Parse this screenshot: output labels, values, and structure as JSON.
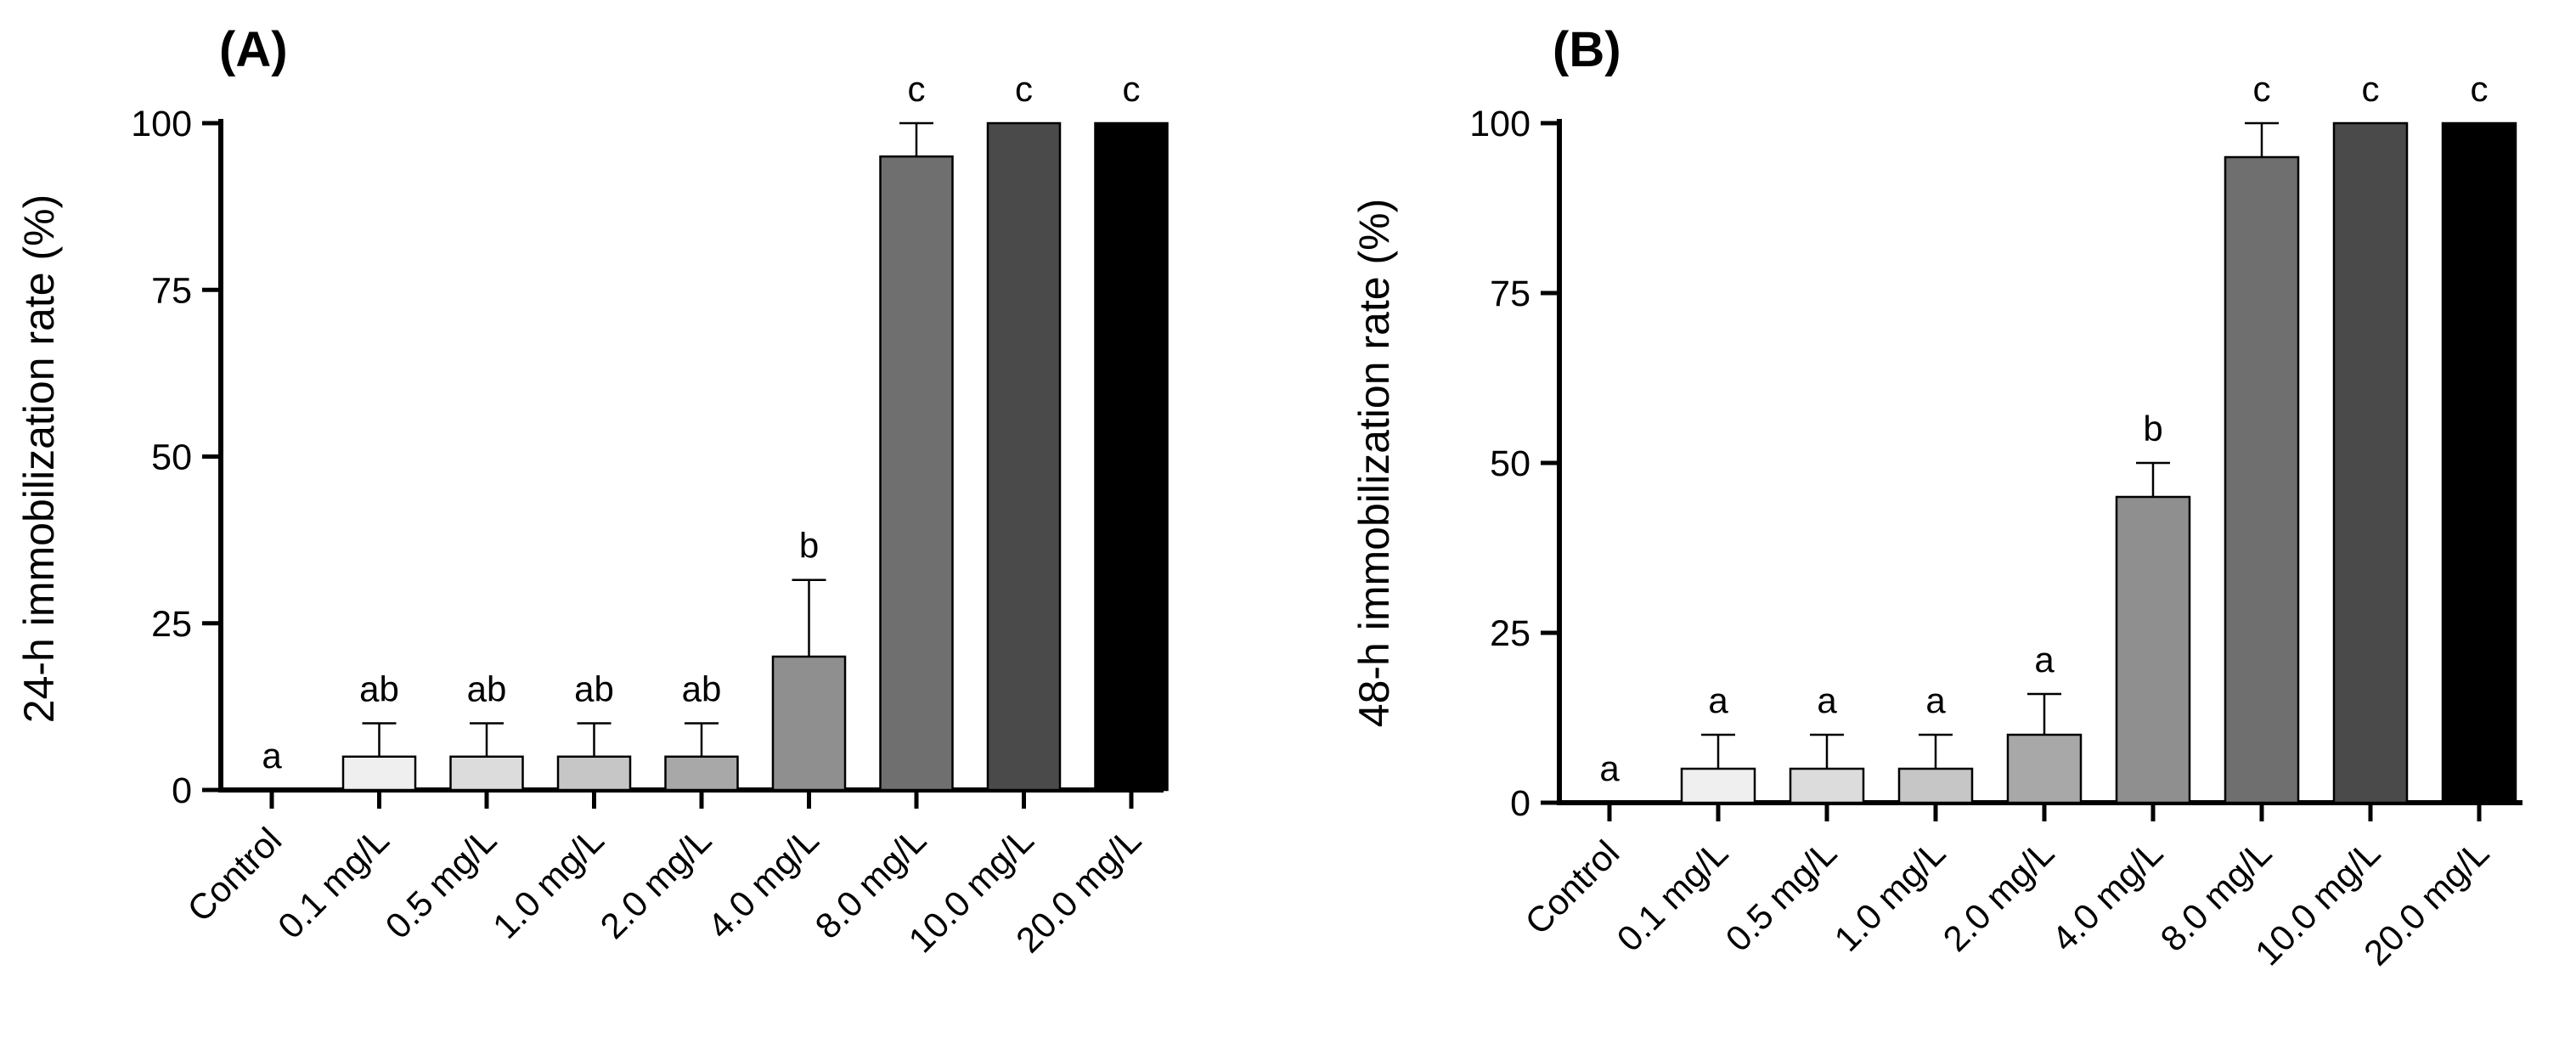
{
  "chart_data": [
    {
      "type": "bar",
      "panel_label": "(A)",
      "title": "",
      "xlabel": "",
      "ylabel": "24-h immobilization rate (%)",
      "ylim": [
        0,
        100
      ],
      "yticks": [
        "0",
        "25",
        "50",
        "75",
        "100"
      ],
      "categories": [
        "Control",
        "0.1 mg/L",
        "0.5 mg/L",
        "1.0 mg/L",
        "2.0 mg/L",
        "4.0 mg/L",
        "8.0 mg/L",
        "10.0 mg/L",
        "20.0 mg/L"
      ],
      "values": [
        0,
        5,
        5,
        5,
        5,
        20,
        95,
        100,
        100
      ],
      "errors": [
        0,
        5,
        5,
        5,
        5,
        11.5,
        5,
        0,
        0
      ],
      "significance": [
        "a",
        "ab",
        "ab",
        "ab",
        "ab",
        "b",
        "c",
        "c",
        "c"
      ],
      "bar_colors": [
        "#ffffff",
        "#efefef",
        "#dcdcdc",
        "#c6c6c6",
        "#a8a8a8",
        "#8f8f8f",
        "#6f6f6f",
        "#4a4a4a",
        "#000000"
      ],
      "grid": false
    },
    {
      "type": "bar",
      "panel_label": "(B)",
      "title": "",
      "xlabel": "",
      "ylabel": "48-h immobilization rate (%)",
      "ylim": [
        0,
        100
      ],
      "yticks": [
        "0",
        "25",
        "50",
        "75",
        "100"
      ],
      "categories": [
        "Control",
        "0.1 mg/L",
        "0.5 mg/L",
        "1.0 mg/L",
        "2.0 mg/L",
        "4.0 mg/L",
        "8.0 mg/L",
        "10.0 mg/L",
        "20.0 mg/L"
      ],
      "values": [
        0,
        5,
        5,
        5,
        10,
        45,
        95,
        100,
        100
      ],
      "errors": [
        0,
        5,
        5,
        5,
        6,
        5,
        5,
        0,
        0
      ],
      "significance": [
        "a",
        "a",
        "a",
        "a",
        "a",
        "b",
        "c",
        "c",
        "c"
      ],
      "bar_colors": [
        "#ffffff",
        "#efefef",
        "#dcdcdc",
        "#c6c6c6",
        "#a8a8a8",
        "#8f8f8f",
        "#6f6f6f",
        "#4a4a4a",
        "#000000"
      ],
      "grid": false
    }
  ]
}
